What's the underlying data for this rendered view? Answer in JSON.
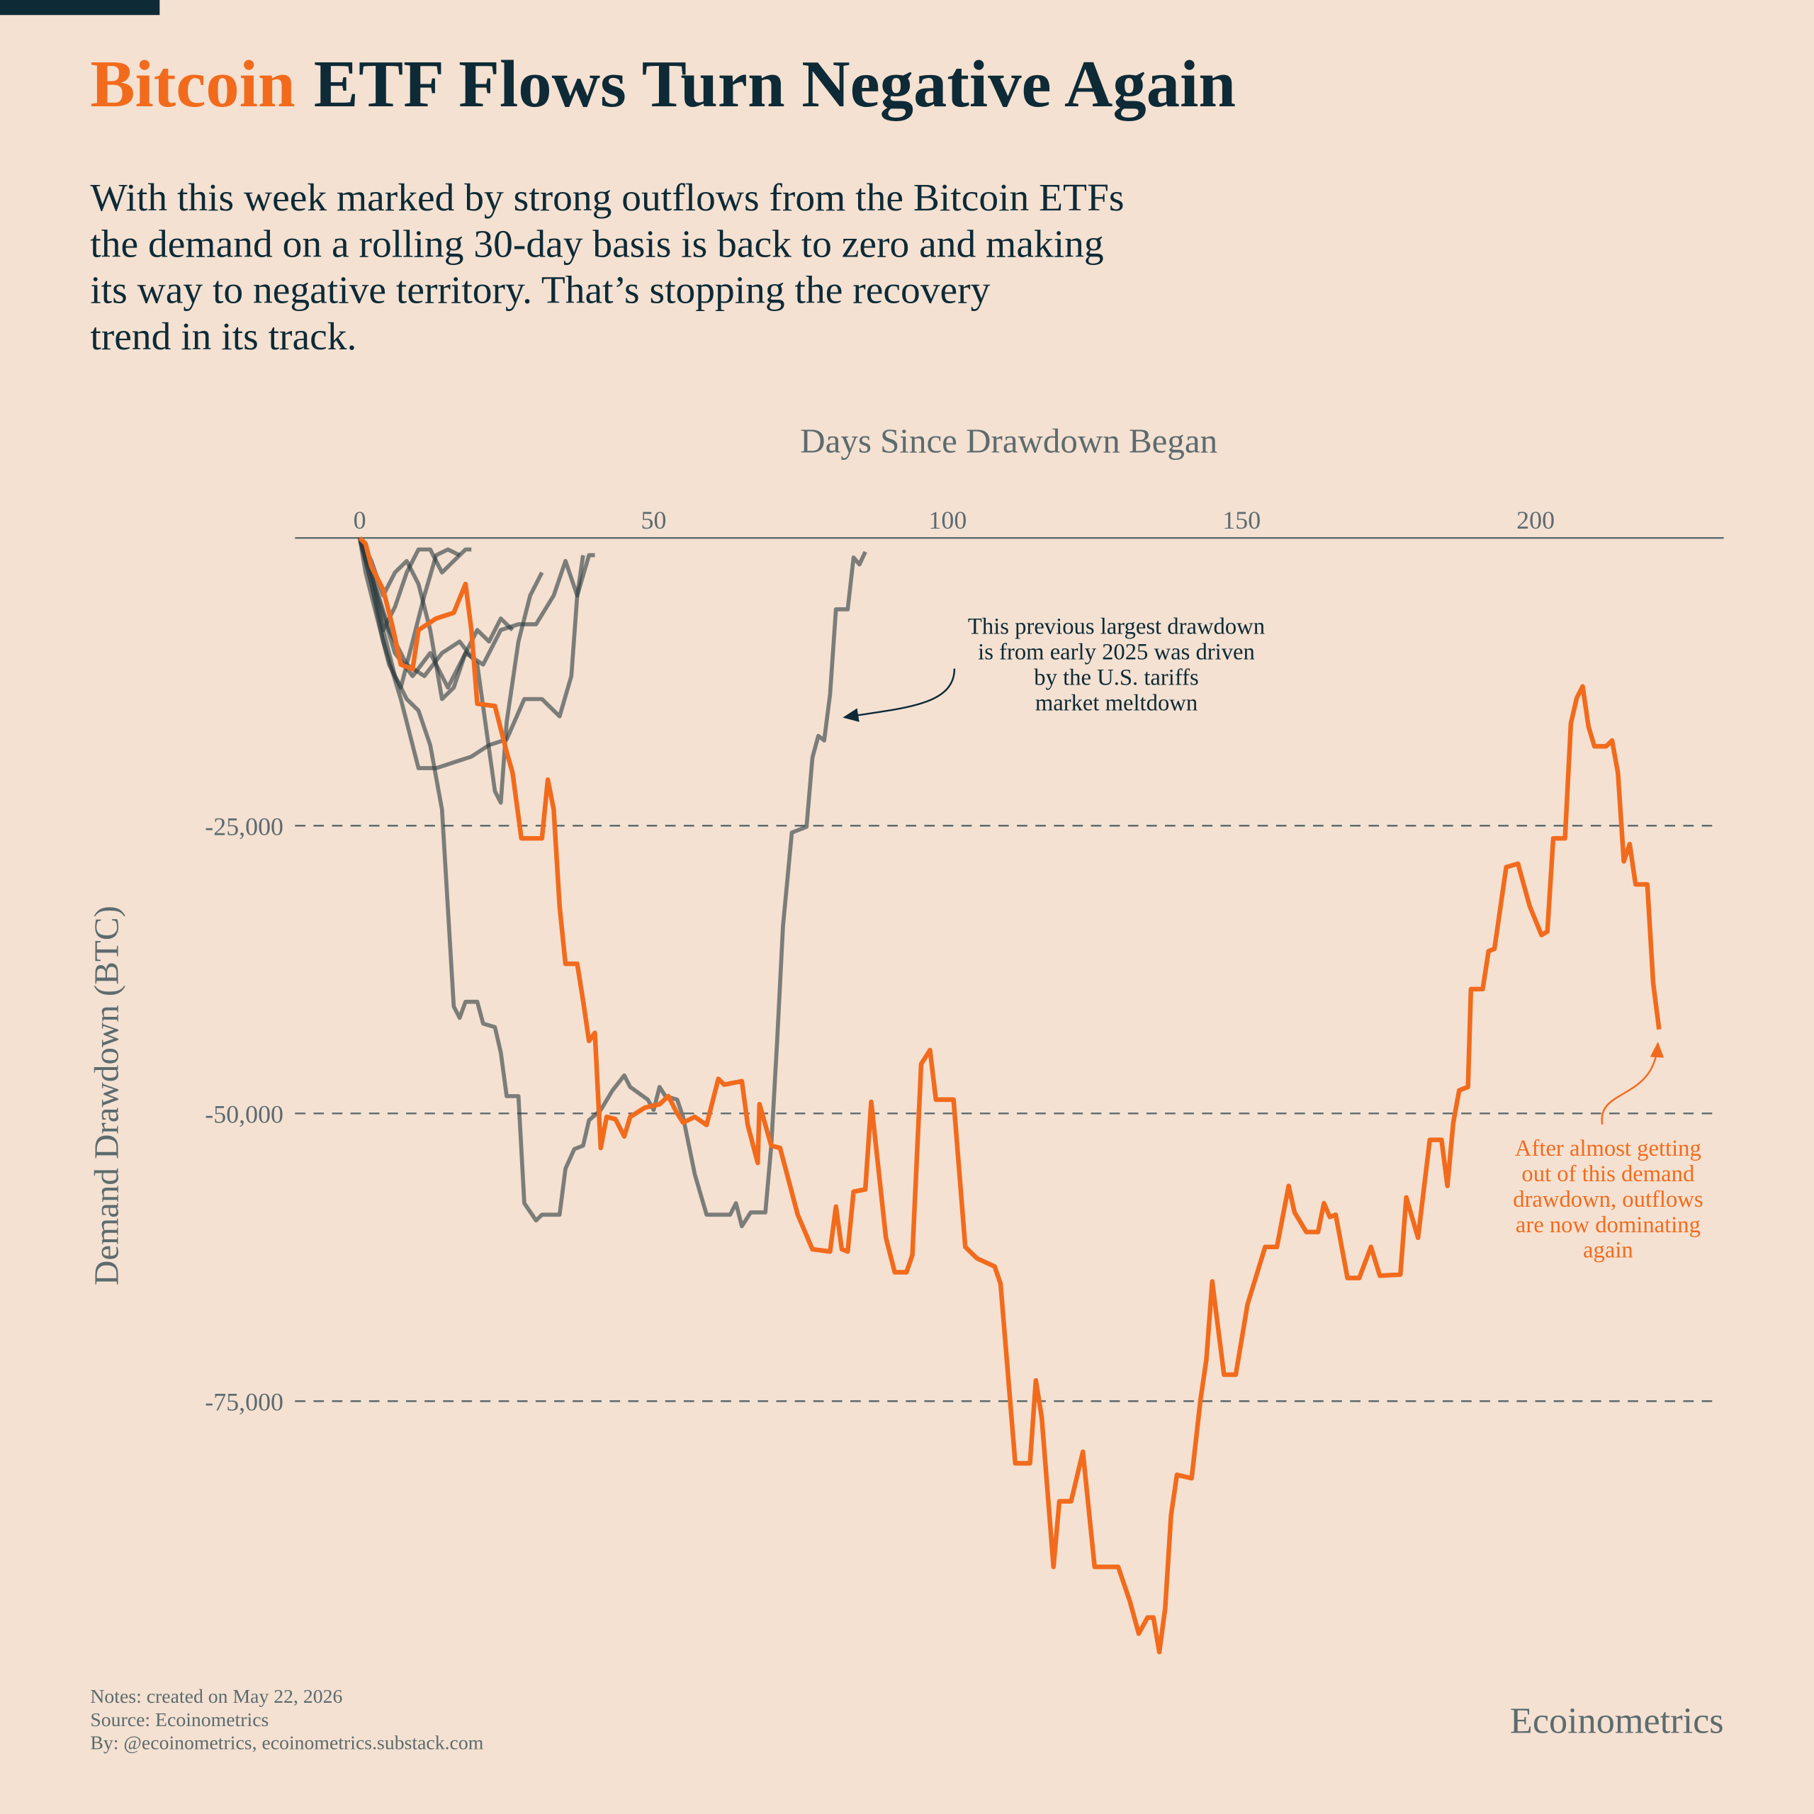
{
  "chart_data": {
    "type": "line",
    "title": {
      "highlight": "Bitcoin",
      "rest": "ETF Flows Turn Negative Again"
    },
    "subtitle": [
      "With this week marked by strong outflows from the Bitcoin ETFs",
      "the demand on a rolling 30-day basis is back to zero and making",
      "its way to negative territory. That’s stopping the recovery",
      "trend in its track."
    ],
    "x_label": "Days Since Drawdown Began",
    "y_label": "Demand Drawdown (BTC)",
    "xlim": [
      -11,
      232
    ],
    "ylim": [
      -97000,
      0
    ],
    "xticks": [
      0,
      50,
      100,
      150,
      200
    ],
    "yticks": [
      {
        "value": -25000,
        "label": "-25,000"
      },
      {
        "value": -50000,
        "label": "-50,000"
      },
      {
        "value": -75000,
        "label": "-75,000"
      }
    ],
    "grid": true,
    "annotations": [
      {
        "lines": [
          "This previous largest drawdown",
          "is from early 2025 was driven",
          "by the U.S. tariffs",
          "market meltdown"
        ]
      },
      {
        "lines": [
          "After almost getting",
          "out of this demand",
          "drawdown, outflows",
          "are now dominating",
          "again"
        ]
      }
    ],
    "notes": [
      "Notes: created on May 22, 2026",
      "Source: Ecoinometrics",
      "By: @ecoinometrics, ecoinometrics.substack.com"
    ],
    "brand": "Ecoinometrics",
    "series": [
      {
        "color": "#2b3a3e",
        "x": [
          0,
          3,
          6,
          9,
          12,
          15,
          18,
          21,
          24,
          27,
          30,
          33,
          35,
          37,
          39,
          40
        ],
        "values": [
          0,
          -5000,
          -10000,
          -12000,
          -10000,
          -13000,
          -10000,
          -11000,
          -8000,
          -7500,
          -7500,
          -5000,
          -2000,
          -5000,
          -1500,
          -1500
        ]
      },
      {
        "color": "#2b3a3e",
        "x": [
          0,
          2,
          4,
          7,
          10,
          13,
          16,
          19,
          22,
          25,
          28,
          31,
          34,
          36,
          37,
          38
        ],
        "values": [
          0,
          -4000,
          -9000,
          -14000,
          -20000,
          -20000,
          -19500,
          -19000,
          -18000,
          -17500,
          -14000,
          -14000,
          -15500,
          -12000,
          -5000,
          -1500
        ]
      },
      {
        "color": "#2b3a3e",
        "x": [
          0,
          2,
          5,
          8,
          11,
          14,
          17,
          20,
          23,
          24,
          25,
          27,
          29,
          31
        ],
        "values": [
          0,
          -3000,
          -8000,
          -11000,
          -12000,
          -10000,
          -9000,
          -11000,
          -22000,
          -23000,
          -16000,
          -9000,
          -5000,
          -3000
        ]
      },
      {
        "color": "#2b3a3e",
        "x": [
          0,
          2,
          4,
          6,
          8,
          10,
          12,
          14,
          16,
          18,
          19
        ],
        "values": [
          0,
          -4000,
          -8000,
          -6000,
          -3000,
          -1000,
          -1000,
          -3000,
          -2000,
          -1000,
          -1000
        ]
      },
      {
        "color": "#2b3a3e",
        "x": [
          0,
          1,
          3,
          5,
          7,
          9,
          11,
          13,
          15,
          17
        ],
        "values": [
          0,
          -3000,
          -7000,
          -11000,
          -13000,
          -9000,
          -5000,
          -1500,
          -1000,
          -1500
        ]
      },
      {
        "color": "#2b3a3e",
        "x": [
          0,
          2,
          4,
          6,
          8,
          10,
          12,
          14,
          16,
          18,
          20,
          22,
          24,
          26
        ],
        "values": [
          0,
          -2000,
          -5000,
          -3000,
          -2000,
          -4000,
          -8000,
          -14000,
          -13000,
          -10000,
          -8000,
          -9000,
          -7000,
          -8000
        ]
      },
      {
        "color": "#2b3a3e",
        "x": [
          0,
          2,
          4,
          6,
          8,
          10,
          12,
          14,
          16,
          17,
          18,
          20,
          21,
          23,
          24,
          25,
          27,
          28,
          30,
          31,
          34,
          35,
          36.5,
          38,
          39,
          41,
          43,
          45,
          46,
          49,
          50,
          51,
          52,
          54,
          55,
          57,
          59,
          63,
          64,
          65,
          66.5,
          69,
          70,
          71,
          72,
          73.5,
          76,
          77,
          78,
          79,
          80,
          81,
          83,
          84,
          85,
          86
        ],
        "values": [
          0,
          -3000,
          -8000,
          -12000,
          -14000,
          -15000,
          -18000,
          -23600,
          -40700,
          -41700,
          -40300,
          -40300,
          -42200,
          -42500,
          -44700,
          -48500,
          -48500,
          -57800,
          -59300,
          -58800,
          -58800,
          -54800,
          -53100,
          -52800,
          -50600,
          -49700,
          -48000,
          -46700,
          -47700,
          -48800,
          -49700,
          -47700,
          -48500,
          -48800,
          -50300,
          -55300,
          -58800,
          -58800,
          -57800,
          -59800,
          -58600,
          -58600,
          -52800,
          -43700,
          -33700,
          -25600,
          -25100,
          -19100,
          -17200,
          -17600,
          -13600,
          -6200,
          -6200,
          -1700,
          -2300,
          -1200
        ]
      },
      {
        "color": "#f26b1d",
        "x": [
          0,
          1,
          2,
          4,
          5.5,
          7,
          9,
          10,
          13,
          16,
          18,
          19,
          20,
          23,
          25,
          26,
          27.5,
          31,
          32,
          33,
          34,
          35,
          37,
          38,
          39,
          40,
          41,
          42,
          43.5,
          45,
          46,
          48.5,
          51,
          52.5,
          54,
          55,
          57,
          59,
          61,
          62,
          65,
          66,
          67.7,
          68,
          70,
          71.5,
          74.5,
          77,
          80,
          81,
          82,
          83,
          84,
          86,
          87,
          89.5,
          91,
          93,
          94,
          95.5,
          97,
          98,
          101,
          103,
          105,
          108,
          109,
          111.5,
          114,
          115,
          116,
          118,
          119,
          121,
          123,
          125,
          129,
          131,
          132.5,
          134,
          135,
          136,
          137,
          138,
          139,
          141.5,
          143,
          144,
          145,
          147,
          149,
          151,
          152.5,
          154,
          156,
          158,
          159,
          161,
          163,
          164,
          165,
          166,
          168,
          170,
          172,
          173.5,
          177,
          178,
          180,
          182,
          184,
          185,
          186,
          187,
          188.5,
          189,
          191,
          192,
          193,
          195,
          197,
          199,
          201,
          202,
          203,
          205,
          206,
          207,
          208,
          209,
          210,
          212,
          213,
          214,
          215,
          216,
          217,
          219,
          220,
          221
        ],
        "values": [
          0,
          -500,
          -2500,
          -4500,
          -7500,
          -11000,
          -11400,
          -8000,
          -7000,
          -6500,
          -4000,
          -8000,
          -14400,
          -14600,
          -18600,
          -20400,
          -26100,
          -26100,
          -21000,
          -23600,
          -32000,
          -37000,
          -37000,
          -40200,
          -43700,
          -43000,
          -53000,
          -50300,
          -50500,
          -52000,
          -50300,
          -49500,
          -49200,
          -48500,
          -50000,
          -50800,
          -50300,
          -51000,
          -47000,
          -47500,
          -47200,
          -51000,
          -54300,
          -49200,
          -52800,
          -53000,
          -58800,
          -61800,
          -62000,
          -58100,
          -61800,
          -62000,
          -56800,
          -56600,
          -49000,
          -60800,
          -63800,
          -63800,
          -62300,
          -45700,
          -44500,
          -48800,
          -48800,
          -61600,
          -62600,
          -63300,
          -64800,
          -80400,
          -80400,
          -73200,
          -76400,
          -89400,
          -83700,
          -83700,
          -79400,
          -89400,
          -89400,
          -92400,
          -95200,
          -93800,
          -93800,
          -96800,
          -93000,
          -84900,
          -81400,
          -81700,
          -74900,
          -71400,
          -64600,
          -72700,
          -72700,
          -66600,
          -64100,
          -61600,
          -61600,
          -56300,
          -58600,
          -60300,
          -60300,
          -57800,
          -59000,
          -58800,
          -64300,
          -64300,
          -61600,
          -64100,
          -64000,
          -57300,
          -60800,
          -52300,
          -52300,
          -56300,
          -50800,
          -48000,
          -47700,
          -39200,
          -39200,
          -35900,
          -35700,
          -28600,
          -28300,
          -32000,
          -34500,
          -34200,
          -26100,
          -26100,
          -16100,
          -13900,
          -12900,
          -16400,
          -18100,
          -18100,
          -17600,
          -20400,
          -28100,
          -26600,
          -30100,
          -30100,
          -38700,
          -42700
        ]
      }
    ]
  }
}
